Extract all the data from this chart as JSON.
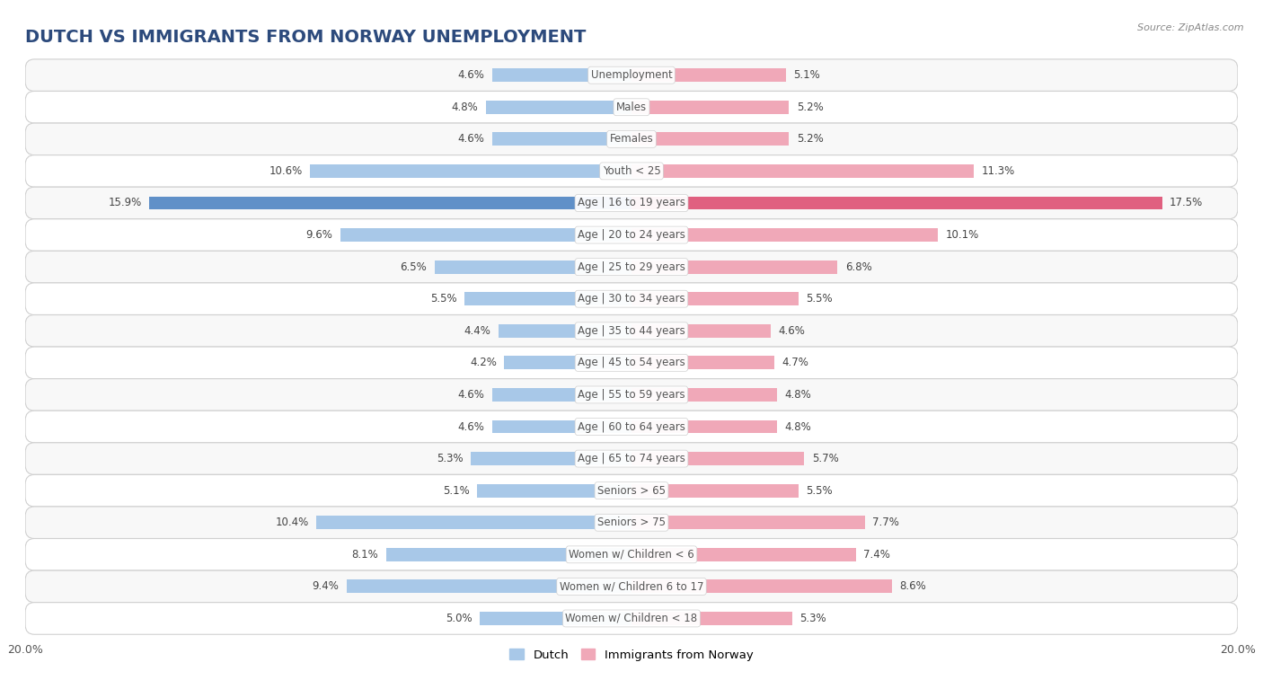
{
  "title": "DUTCH VS IMMIGRANTS FROM NORWAY UNEMPLOYMENT",
  "source": "Source: ZipAtlas.com",
  "categories": [
    "Unemployment",
    "Males",
    "Females",
    "Youth < 25",
    "Age | 16 to 19 years",
    "Age | 20 to 24 years",
    "Age | 25 to 29 years",
    "Age | 30 to 34 years",
    "Age | 35 to 44 years",
    "Age | 45 to 54 years",
    "Age | 55 to 59 years",
    "Age | 60 to 64 years",
    "Age | 65 to 74 years",
    "Seniors > 65",
    "Seniors > 75",
    "Women w/ Children < 6",
    "Women w/ Children 6 to 17",
    "Women w/ Children < 18"
  ],
  "dutch_values": [
    4.6,
    4.8,
    4.6,
    10.6,
    15.9,
    9.6,
    6.5,
    5.5,
    4.4,
    4.2,
    4.6,
    4.6,
    5.3,
    5.1,
    10.4,
    8.1,
    9.4,
    5.0
  ],
  "norway_values": [
    5.1,
    5.2,
    5.2,
    11.3,
    17.5,
    10.1,
    6.8,
    5.5,
    4.6,
    4.7,
    4.8,
    4.8,
    5.7,
    5.5,
    7.7,
    7.4,
    8.6,
    5.3
  ],
  "dutch_color": "#a8c8e8",
  "norway_color": "#f0a8b8",
  "dutch_highlight_color": "#6090c8",
  "norway_highlight_color": "#e06080",
  "highlight_rows": [
    "Age | 16 to 19 years"
  ],
  "max_value": 20.0,
  "background_color": "#ffffff",
  "row_bg_even": "#f8f8f8",
  "row_bg_odd": "#ffffff",
  "row_border_color": "#d0d0d0",
  "legend_dutch": "Dutch",
  "legend_norway": "Immigrants from Norway",
  "title_fontsize": 14,
  "label_fontsize": 8.5,
  "value_fontsize": 8.5,
  "source_fontsize": 8
}
